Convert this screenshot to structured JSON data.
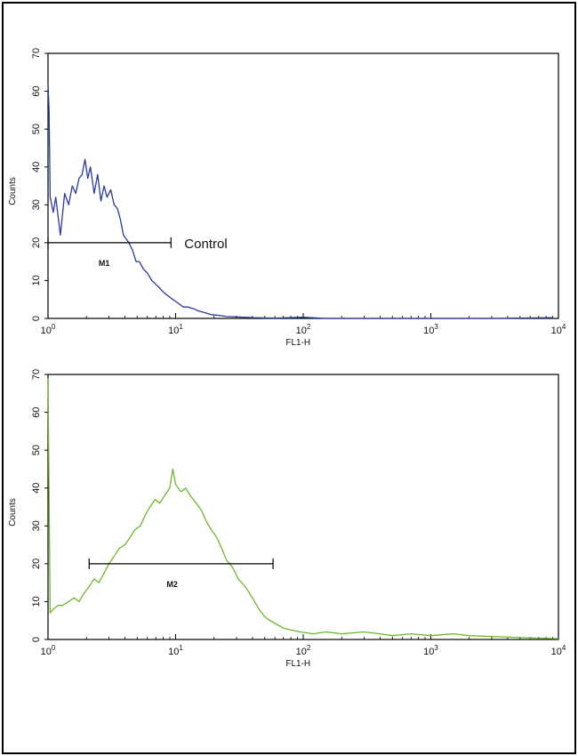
{
  "chart_data": [
    {
      "type": "line",
      "xscale": "log",
      "xlim": [
        1,
        10000
      ],
      "ylim": [
        0,
        70
      ],
      "xlabel": "FL1-H",
      "ylabel": "Counts",
      "xticks": [
        {
          "base": "10",
          "exp": "0"
        },
        {
          "base": "10",
          "exp": "1"
        },
        {
          "base": "10",
          "exp": "2"
        },
        {
          "base": "10",
          "exp": "3"
        },
        {
          "base": "10",
          "exp": "4"
        }
      ],
      "yticks": [
        "0",
        "10",
        "20",
        "30",
        "40",
        "50",
        "60",
        "70"
      ],
      "annotation": "Control",
      "series": [
        {
          "color": "#2a3a9c",
          "points": [
            [
              1.0,
              62
            ],
            [
              1.02,
              55
            ],
            [
              1.04,
              32
            ],
            [
              1.1,
              28
            ],
            [
              1.15,
              32
            ],
            [
              1.25,
              22
            ],
            [
              1.35,
              33
            ],
            [
              1.45,
              30
            ],
            [
              1.55,
              35
            ],
            [
              1.65,
              33
            ],
            [
              1.75,
              37
            ],
            [
              1.85,
              38
            ],
            [
              1.95,
              42
            ],
            [
              2.05,
              37
            ],
            [
              2.15,
              40
            ],
            [
              2.3,
              33
            ],
            [
              2.45,
              38
            ],
            [
              2.6,
              31
            ],
            [
              2.75,
              35
            ],
            [
              2.9,
              32
            ],
            [
              3.1,
              34
            ],
            [
              3.3,
              30
            ],
            [
              3.5,
              29
            ],
            [
              3.7,
              26
            ],
            [
              3.9,
              22
            ],
            [
              4.1,
              21
            ],
            [
              4.3,
              20
            ],
            [
              4.6,
              18
            ],
            [
              4.9,
              15
            ],
            [
              5.2,
              15
            ],
            [
              5.6,
              13
            ],
            [
              6.0,
              12
            ],
            [
              6.5,
              10
            ],
            [
              7.0,
              9
            ],
            [
              7.5,
              8
            ],
            [
              8.0,
              7
            ],
            [
              8.7,
              6
            ],
            [
              9.5,
              5
            ],
            [
              10.5,
              4
            ],
            [
              11.5,
              3
            ],
            [
              12.5,
              3
            ],
            [
              14,
              2.5
            ],
            [
              15,
              2
            ],
            [
              17,
              1.5
            ],
            [
              19,
              1
            ],
            [
              22,
              0.8
            ],
            [
              25,
              0.5
            ],
            [
              30,
              0.4
            ],
            [
              40,
              0.2
            ],
            [
              60,
              0.1
            ],
            [
              100,
              0.3
            ],
            [
              150,
              0
            ],
            [
              300,
              0
            ],
            [
              1000,
              0
            ],
            [
              3000,
              0
            ],
            [
              9000,
              0.2
            ]
          ]
        }
      ],
      "gate": {
        "label": "M1",
        "x_start": 1.0,
        "x_end": 9.2,
        "y": 20
      }
    },
    {
      "type": "line",
      "xscale": "log",
      "xlim": [
        1,
        10000
      ],
      "ylim": [
        0,
        70
      ],
      "xlabel": "FL1-H",
      "ylabel": "Counts",
      "xticks": [
        {
          "base": "10",
          "exp": "0"
        },
        {
          "base": "10",
          "exp": "1"
        },
        {
          "base": "10",
          "exp": "2"
        },
        {
          "base": "10",
          "exp": "3"
        },
        {
          "base": "10",
          "exp": "4"
        }
      ],
      "yticks": [
        "0",
        "10",
        "20",
        "30",
        "40",
        "50",
        "60",
        "70"
      ],
      "annotation": "",
      "series": [
        {
          "color": "#6ab82e",
          "points": [
            [
              1.0,
              69
            ],
            [
              1.02,
              38
            ],
            [
              1.04,
              7
            ],
            [
              1.1,
              8
            ],
            [
              1.2,
              9
            ],
            [
              1.3,
              9
            ],
            [
              1.45,
              10
            ],
            [
              1.6,
              11
            ],
            [
              1.75,
              10
            ],
            [
              1.9,
              12
            ],
            [
              2.1,
              14
            ],
            [
              2.3,
              16
            ],
            [
              2.5,
              15
            ],
            [
              2.7,
              17
            ],
            [
              3.0,
              20
            ],
            [
              3.3,
              22
            ],
            [
              3.6,
              24
            ],
            [
              4.0,
              25
            ],
            [
              4.4,
              27
            ],
            [
              4.8,
              29
            ],
            [
              5.3,
              30
            ],
            [
              5.8,
              33
            ],
            [
              6.3,
              35
            ],
            [
              6.9,
              37
            ],
            [
              7.5,
              36
            ],
            [
              8.2,
              38
            ],
            [
              9.0,
              40
            ],
            [
              9.5,
              45
            ],
            [
              10.0,
              41
            ],
            [
              11,
              39
            ],
            [
              12,
              40
            ],
            [
              13,
              38
            ],
            [
              14.5,
              36
            ],
            [
              16,
              34
            ],
            [
              17.5,
              31
            ],
            [
              19,
              29
            ],
            [
              21,
              27
            ],
            [
              23,
              24
            ],
            [
              25,
              21
            ],
            [
              28,
              19
            ],
            [
              31,
              16
            ],
            [
              35,
              14
            ],
            [
              40,
              11
            ],
            [
              45,
              8
            ],
            [
              50,
              6
            ],
            [
              55,
              5
            ],
            [
              62,
              4
            ],
            [
              70,
              3
            ],
            [
              80,
              2.5
            ],
            [
              95,
              2
            ],
            [
              120,
              1.5
            ],
            [
              150,
              2
            ],
            [
              200,
              1.5
            ],
            [
              300,
              2
            ],
            [
              400,
              1.5
            ],
            [
              500,
              1
            ],
            [
              700,
              1.5
            ],
            [
              1000,
              1
            ],
            [
              1500,
              1.5
            ],
            [
              2000,
              1
            ],
            [
              3000,
              0.8
            ],
            [
              5000,
              0.5
            ],
            [
              8000,
              0.3
            ],
            [
              10000,
              0.2
            ]
          ]
        }
      ],
      "gate": {
        "label": "M2",
        "x_start": 2.1,
        "x_end": 58,
        "y": 20
      }
    }
  ]
}
